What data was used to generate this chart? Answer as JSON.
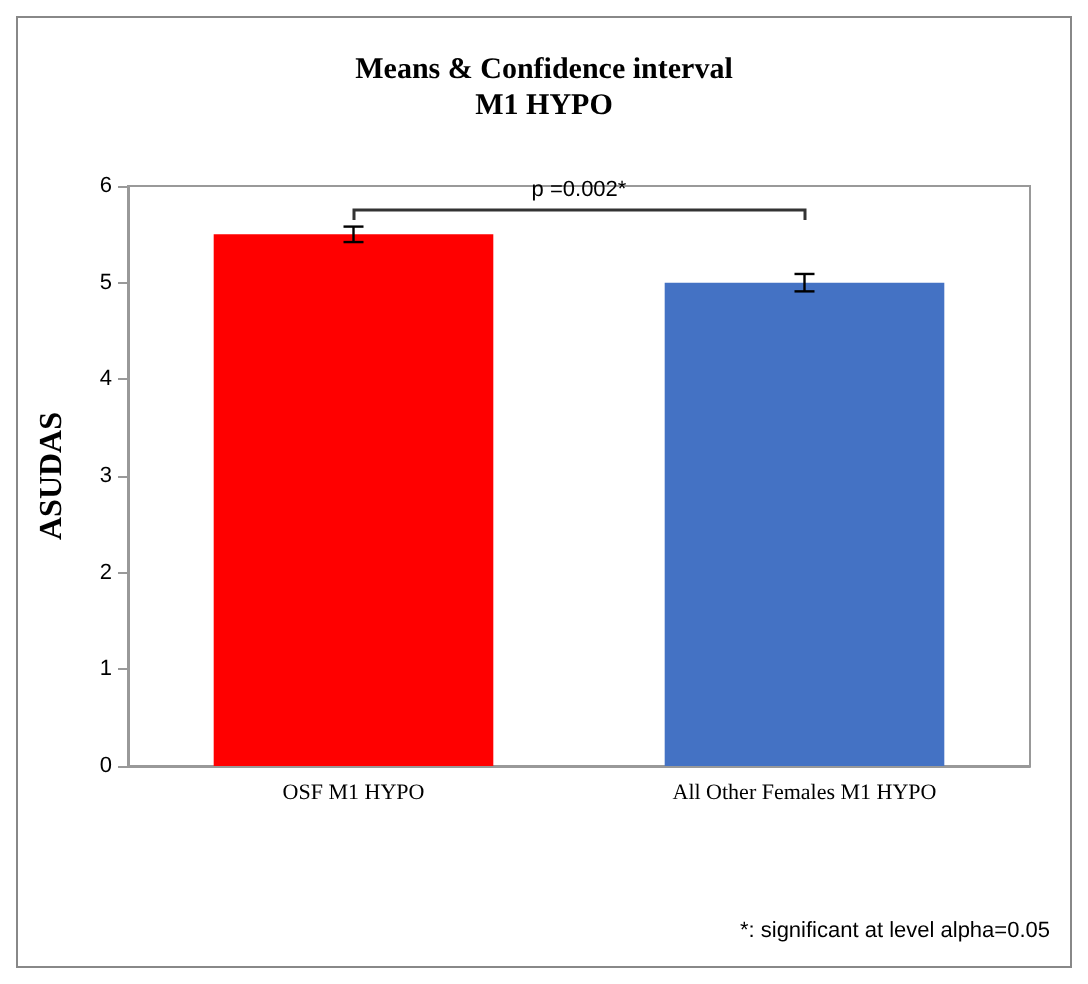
{
  "chart_data": {
    "type": "bar",
    "title": "Means & Confidence interval\nM1 HYPO",
    "ylabel": "ASUDAS",
    "categories": [
      "OSF M1 HYPO",
      "All Other Females M1 HYPO"
    ],
    "values": [
      5.5,
      5.0
    ],
    "colors": [
      "#ff0000",
      "#4472c4"
    ],
    "errors": [
      0.08,
      0.09
    ],
    "ylim": [
      0,
      6
    ],
    "yticks": [
      0,
      1,
      2,
      3,
      4,
      5,
      6
    ],
    "grid": false,
    "annotations": [
      "p =0.002*",
      "*: significant at level alpha=0.05"
    ]
  }
}
